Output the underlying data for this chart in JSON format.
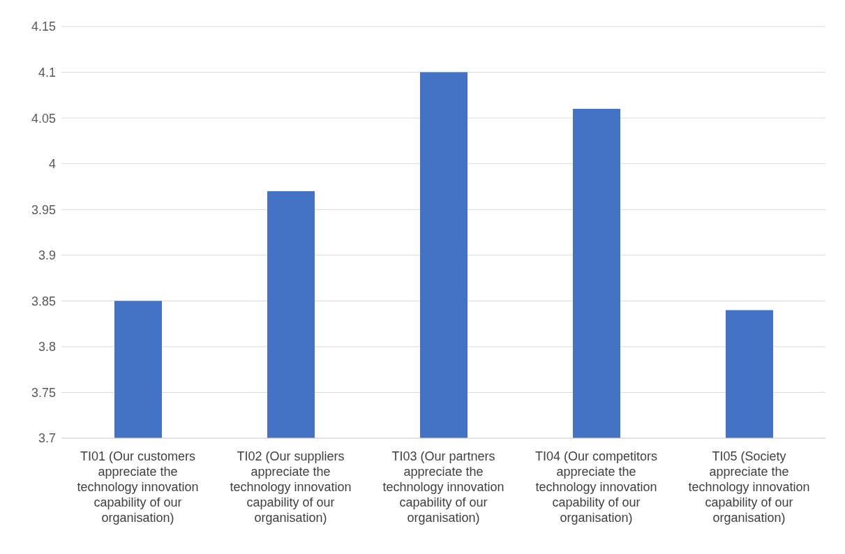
{
  "chart_data": {
    "type": "bar",
    "categories": [
      "TI01 (Our customers appreciate the technology innovation capability of our organisation)",
      "TI02 (Our suppliers appreciate the technology innovation capability of our organisation)",
      "TI03 (Our partners appreciate the technology innovation capability of our organisation)",
      "TI04 (Our competitors appreciate the technology innovation capability of our organisation)",
      "TI05 (Society appreciate the technology innovation capability of our organisation)"
    ],
    "values": [
      3.85,
      3.97,
      4.1,
      4.06,
      3.84
    ],
    "color": "#4472c4",
    "ylim": [
      3.7,
      4.15
    ],
    "yticks": [
      3.7,
      3.75,
      3.8,
      3.85,
      3.9,
      3.95,
      4,
      4.05,
      4.1,
      4.15
    ],
    "grid": "y"
  }
}
